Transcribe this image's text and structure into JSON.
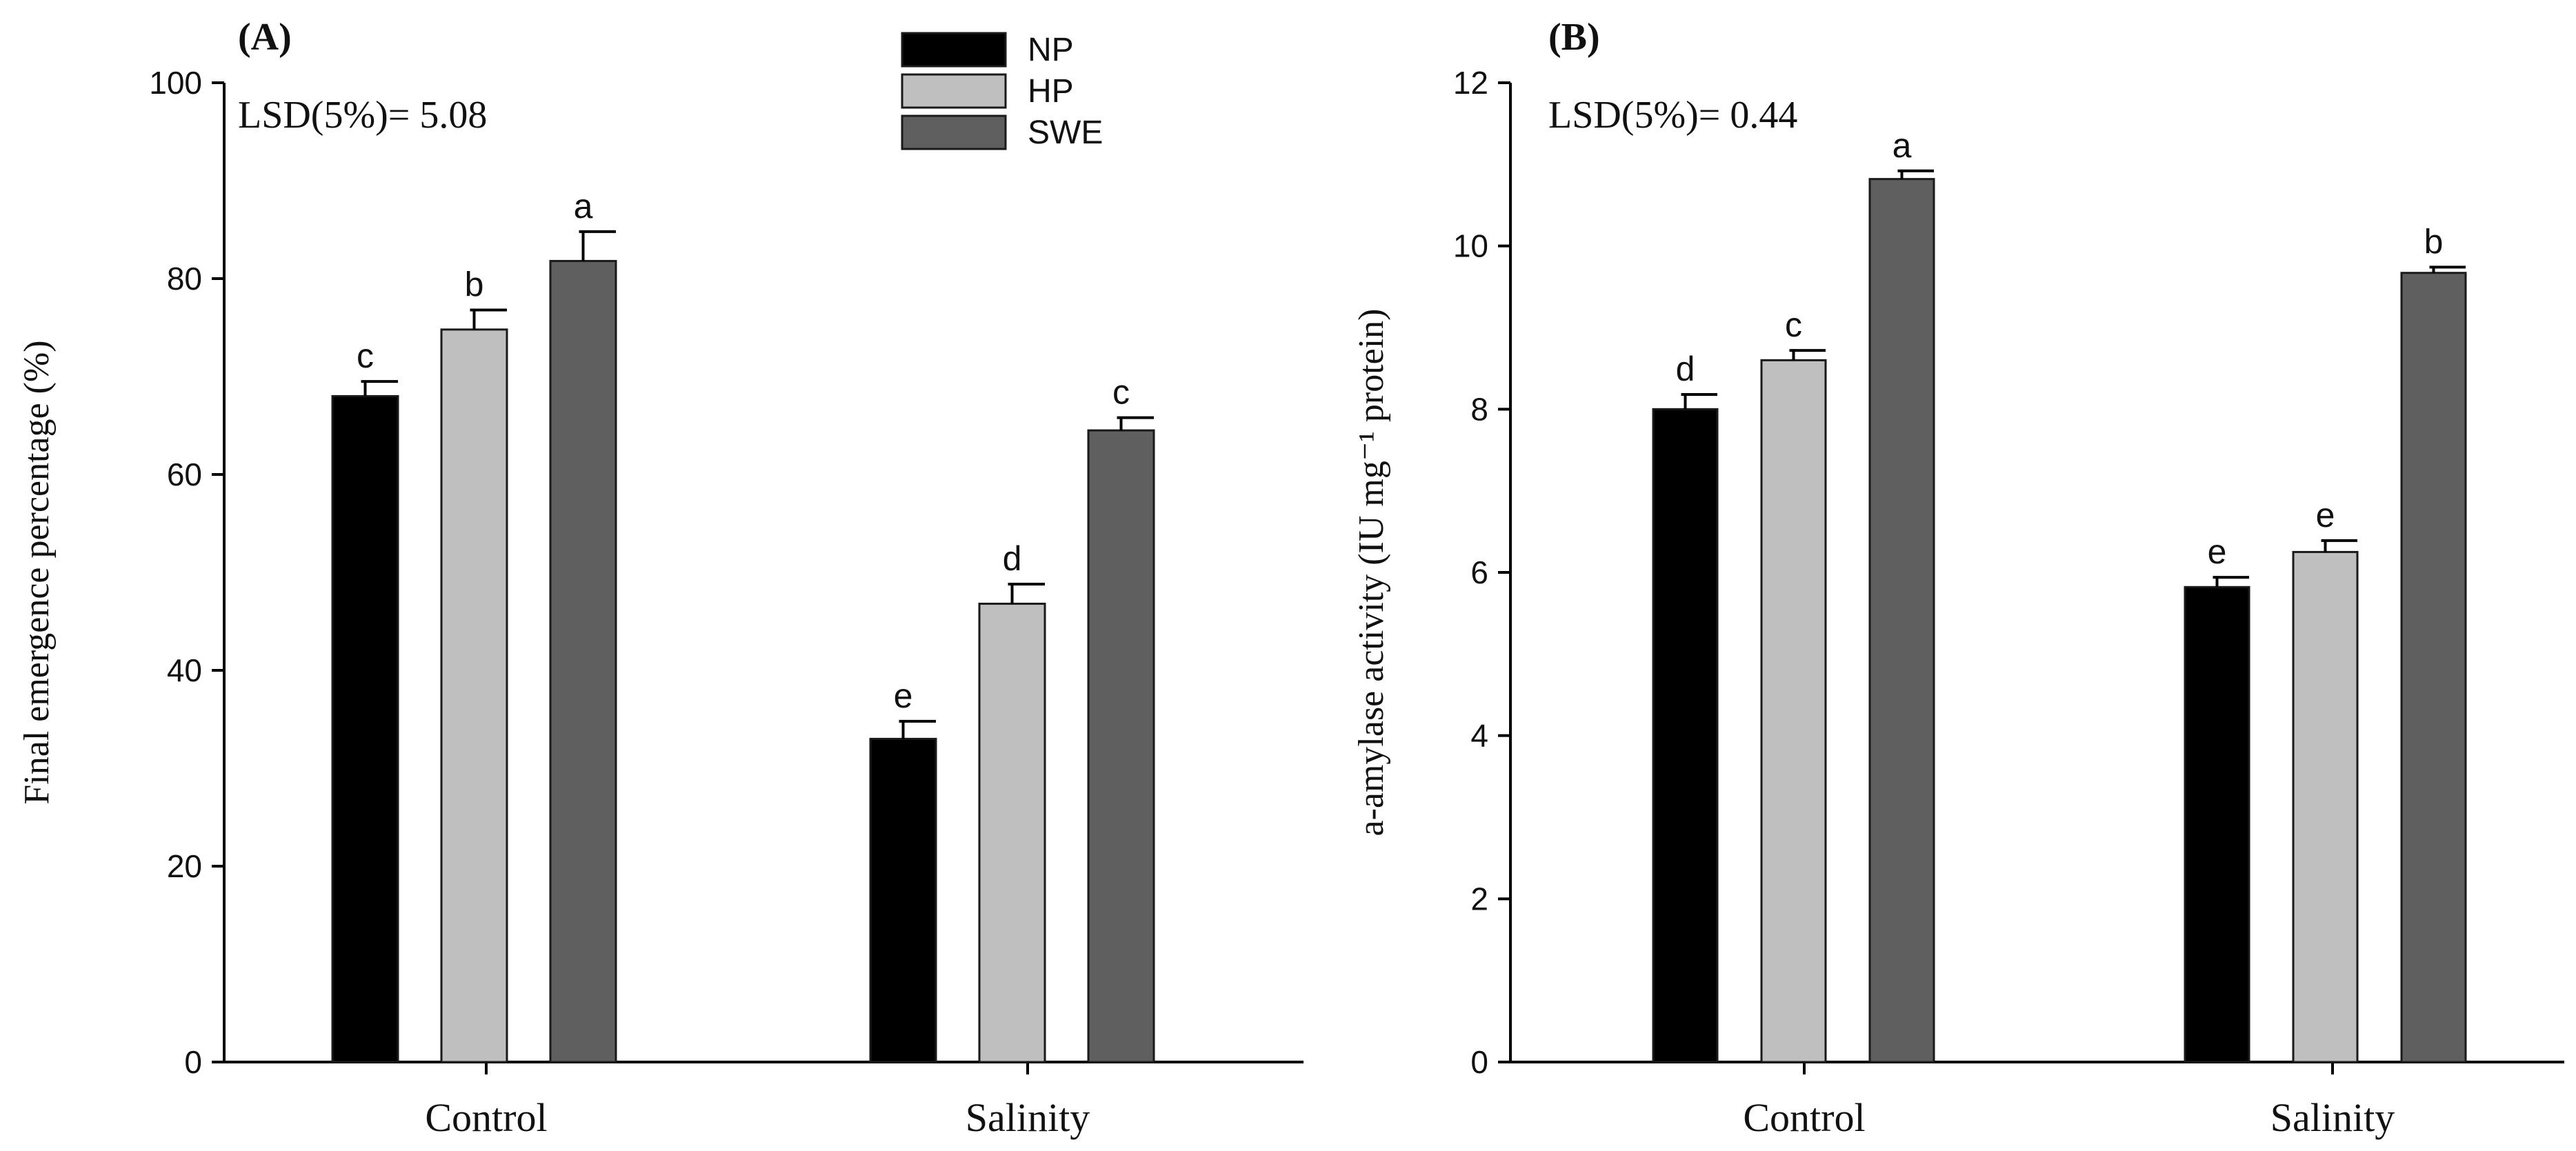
{
  "chart_data": [
    {
      "type": "bar",
      "panel_label": "(A)",
      "title": "",
      "xlabel": "",
      "ylabel": "Final emergence percentage (%)",
      "categories": [
        "Control",
        "Salinity"
      ],
      "ylim": [
        0,
        100
      ],
      "yticks": [
        "0",
        "20",
        "40",
        "60",
        "80",
        "100"
      ],
      "annotation": "LSD(5%)= 5.08",
      "series": [
        {
          "name": "NP",
          "color": "#000000",
          "values": [
            68,
            33
          ],
          "errors": [
            1.5,
            1.8
          ],
          "letters": [
            "c",
            "e"
          ]
        },
        {
          "name": "HP",
          "color": "#bfbfbf",
          "values": [
            74.8,
            46.8
          ],
          "errors": [
            2.0,
            2.0
          ],
          "letters": [
            "b",
            "d"
          ]
        },
        {
          "name": "SWE",
          "color": "#5f5f5f",
          "values": [
            81.8,
            64.5
          ],
          "errors": [
            3.0,
            1.3
          ],
          "letters": [
            "a",
            "c"
          ]
        }
      ],
      "legend": {
        "position": "top-right",
        "entries": [
          "NP",
          "HP",
          "SWE"
        ]
      }
    },
    {
      "type": "bar",
      "panel_label": "(B)",
      "title": "",
      "xlabel": "",
      "ylabel": "a-amylase activity (IU mg⁻¹ protein)",
      "categories": [
        "Control",
        "Salinity"
      ],
      "ylim": [
        0,
        12
      ],
      "yticks": [
        "0",
        "2",
        "4",
        "6",
        "8",
        "10",
        "12"
      ],
      "annotation": "LSD(5%)= 0.44",
      "series": [
        {
          "name": "NP",
          "color": "#000000",
          "values": [
            8.0,
            5.82
          ],
          "errors": [
            0.18,
            0.12
          ],
          "letters": [
            "d",
            "e"
          ]
        },
        {
          "name": "HP",
          "color": "#bfbfbf",
          "values": [
            8.6,
            6.25
          ],
          "errors": [
            0.12,
            0.14
          ],
          "letters": [
            "c",
            "e"
          ]
        },
        {
          "name": "SWE",
          "color": "#5f5f5f",
          "values": [
            10.82,
            9.67
          ],
          "errors": [
            0.1,
            0.07
          ],
          "letters": [
            "a",
            "b"
          ]
        }
      ]
    }
  ]
}
